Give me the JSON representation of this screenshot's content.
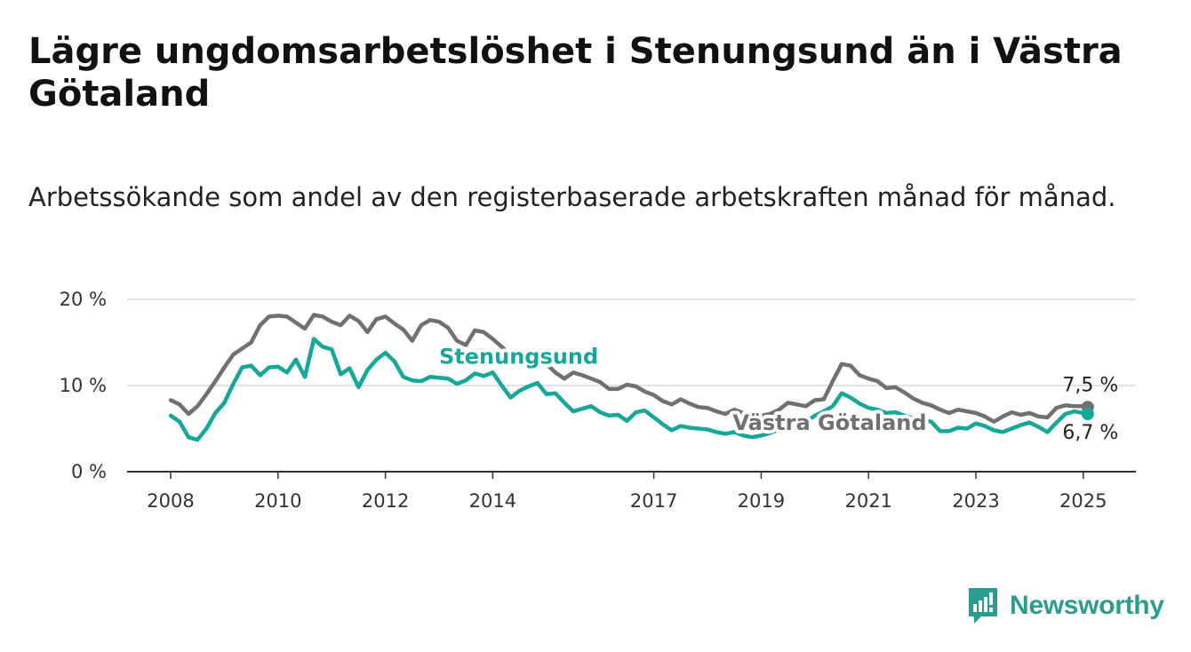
{
  "header": {
    "title": "Lägre ungdomsarbetslöshet i Stenungsund än i Västra Götaland",
    "subtitle": "Arbetssökande som andel av den registerbaserade arbetskraften månad för månad."
  },
  "colors": {
    "stenungsund": "#14a79a",
    "vastra_gotaland": "#707070",
    "grid": "#d9d9d9",
    "axis": "#333333",
    "brand": "#2a9d90"
  },
  "logo": {
    "text": "Newsworthy",
    "icon": "bar-chart-logo-icon"
  },
  "chart_data": {
    "type": "line",
    "title": "Lägre ungdomsarbetslöshet i Stenungsund än i Västra Götaland",
    "subtitle": "Arbetssökande som andel av den registerbaserade arbetskraften månad för månad.",
    "xlabel": "",
    "ylabel": "",
    "xlim": [
      "2008-01",
      "2025-12"
    ],
    "ylim": [
      0,
      20
    ],
    "y_ticks": [
      0,
      10,
      20
    ],
    "y_tick_labels": [
      "0 %",
      "10 %",
      "20 %"
    ],
    "x_ticks": [
      "2008",
      "2010",
      "2012",
      "2014",
      "2017",
      "2019",
      "2021",
      "2023",
      "2025"
    ],
    "grid": true,
    "legend": "inline labels",
    "series": [
      {
        "name": "Västra Götaland",
        "label_position": "2019-01",
        "end_label": "7,5 %",
        "points": [
          [
            "2008-01",
            8.3
          ],
          [
            "2008-03",
            7.8
          ],
          [
            "2008-05",
            6.7
          ],
          [
            "2008-07",
            7.6
          ],
          [
            "2008-09",
            9.0
          ],
          [
            "2008-11",
            10.5
          ],
          [
            "2009-01",
            12.1
          ],
          [
            "2009-03",
            13.6
          ],
          [
            "2009-05",
            14.3
          ],
          [
            "2009-07",
            15.0
          ],
          [
            "2009-09",
            17.0
          ],
          [
            "2009-11",
            18.0
          ],
          [
            "2010-01",
            18.1
          ],
          [
            "2010-03",
            18.0
          ],
          [
            "2010-05",
            17.3
          ],
          [
            "2010-07",
            16.6
          ],
          [
            "2010-09",
            18.2
          ],
          [
            "2010-11",
            18.0
          ],
          [
            "2011-01",
            17.4
          ],
          [
            "2011-03",
            17.0
          ],
          [
            "2011-05",
            18.1
          ],
          [
            "2011-07",
            17.5
          ],
          [
            "2011-09",
            16.2
          ],
          [
            "2011-11",
            17.7
          ],
          [
            "2012-01",
            18.0
          ],
          [
            "2012-03",
            17.2
          ],
          [
            "2012-05",
            16.5
          ],
          [
            "2012-07",
            15.2
          ],
          [
            "2012-09",
            17.0
          ],
          [
            "2012-11",
            17.6
          ],
          [
            "2013-01",
            17.4
          ],
          [
            "2013-03",
            16.7
          ],
          [
            "2013-05",
            15.2
          ],
          [
            "2013-07",
            14.7
          ],
          [
            "2013-09",
            16.4
          ],
          [
            "2013-11",
            16.2
          ],
          [
            "2014-01",
            15.4
          ],
          [
            "2014-03",
            14.5
          ],
          [
            "2014-05",
            13.5
          ],
          [
            "2014-07",
            12.7
          ],
          [
            "2014-09",
            13.8
          ],
          [
            "2014-11",
            13.2
          ],
          [
            "2015-01",
            12.5
          ],
          [
            "2015-03",
            11.5
          ],
          [
            "2015-05",
            10.8
          ],
          [
            "2015-07",
            11.5
          ],
          [
            "2015-09",
            11.2
          ],
          [
            "2015-11",
            10.8
          ],
          [
            "2016-01",
            10.4
          ],
          [
            "2016-03",
            9.6
          ],
          [
            "2016-05",
            9.6
          ],
          [
            "2016-07",
            10.1
          ],
          [
            "2016-09",
            9.9
          ],
          [
            "2016-11",
            9.3
          ],
          [
            "2017-01",
            8.9
          ],
          [
            "2017-03",
            8.2
          ],
          [
            "2017-05",
            7.8
          ],
          [
            "2017-07",
            8.4
          ],
          [
            "2017-09",
            7.9
          ],
          [
            "2017-11",
            7.5
          ],
          [
            "2018-01",
            7.4
          ],
          [
            "2018-03",
            7.0
          ],
          [
            "2018-05",
            6.7
          ],
          [
            "2018-07",
            7.2
          ],
          [
            "2018-09",
            6.8
          ],
          [
            "2018-11",
            6.6
          ],
          [
            "2019-01",
            6.5
          ],
          [
            "2019-03",
            6.7
          ],
          [
            "2019-05",
            7.2
          ],
          [
            "2019-07",
            8.0
          ],
          [
            "2019-09",
            7.8
          ],
          [
            "2019-11",
            7.6
          ],
          [
            "2020-01",
            8.3
          ],
          [
            "2020-03",
            8.4
          ],
          [
            "2020-05",
            10.5
          ],
          [
            "2020-07",
            12.5
          ],
          [
            "2020-09",
            12.3
          ],
          [
            "2020-11",
            11.2
          ],
          [
            "2021-01",
            10.8
          ],
          [
            "2021-03",
            10.5
          ],
          [
            "2021-05",
            9.7
          ],
          [
            "2021-07",
            9.8
          ],
          [
            "2021-09",
            9.2
          ],
          [
            "2021-11",
            8.5
          ],
          [
            "2022-01",
            8.0
          ],
          [
            "2022-03",
            7.7
          ],
          [
            "2022-05",
            7.2
          ],
          [
            "2022-07",
            6.8
          ],
          [
            "2022-09",
            7.2
          ],
          [
            "2022-11",
            7.0
          ],
          [
            "2023-01",
            6.8
          ],
          [
            "2023-03",
            6.4
          ],
          [
            "2023-05",
            5.8
          ],
          [
            "2023-07",
            6.4
          ],
          [
            "2023-09",
            6.9
          ],
          [
            "2023-11",
            6.6
          ],
          [
            "2024-01",
            6.8
          ],
          [
            "2024-03",
            6.4
          ],
          [
            "2024-05",
            6.3
          ],
          [
            "2024-07",
            7.4
          ],
          [
            "2024-09",
            7.7
          ],
          [
            "2024-11",
            7.6
          ],
          [
            "2025-01",
            7.6
          ],
          [
            "2025-02",
            7.5
          ]
        ]
      },
      {
        "name": "Stenungsund",
        "label_position": "2013-01",
        "end_label": "6,7 %",
        "points": [
          [
            "2008-01",
            6.5
          ],
          [
            "2008-03",
            5.8
          ],
          [
            "2008-05",
            4.0
          ],
          [
            "2008-07",
            3.7
          ],
          [
            "2008-09",
            5.0
          ],
          [
            "2008-11",
            6.8
          ],
          [
            "2009-01",
            8.0
          ],
          [
            "2009-03",
            10.2
          ],
          [
            "2009-05",
            12.1
          ],
          [
            "2009-07",
            12.3
          ],
          [
            "2009-09",
            11.2
          ],
          [
            "2009-11",
            12.1
          ],
          [
            "2010-01",
            12.2
          ],
          [
            "2010-03",
            11.5
          ],
          [
            "2010-05",
            13.0
          ],
          [
            "2010-07",
            11.0
          ],
          [
            "2010-09",
            15.4
          ],
          [
            "2010-11",
            14.5
          ],
          [
            "2011-01",
            14.2
          ],
          [
            "2011-03",
            11.3
          ],
          [
            "2011-05",
            12.0
          ],
          [
            "2011-07",
            9.8
          ],
          [
            "2011-09",
            11.8
          ],
          [
            "2011-11",
            13.0
          ],
          [
            "2012-01",
            13.8
          ],
          [
            "2012-03",
            12.8
          ],
          [
            "2012-05",
            11.0
          ],
          [
            "2012-07",
            10.6
          ],
          [
            "2012-09",
            10.5
          ],
          [
            "2012-11",
            11.0
          ],
          [
            "2013-01",
            10.9
          ],
          [
            "2013-03",
            10.8
          ],
          [
            "2013-05",
            10.2
          ],
          [
            "2013-07",
            10.6
          ],
          [
            "2013-09",
            11.4
          ],
          [
            "2013-11",
            11.1
          ],
          [
            "2014-01",
            11.5
          ],
          [
            "2014-03",
            10.0
          ],
          [
            "2014-05",
            8.6
          ],
          [
            "2014-07",
            9.4
          ],
          [
            "2014-09",
            9.9
          ],
          [
            "2014-11",
            10.3
          ],
          [
            "2015-01",
            9.0
          ],
          [
            "2015-03",
            9.1
          ],
          [
            "2015-05",
            8.0
          ],
          [
            "2015-07",
            7.0
          ],
          [
            "2015-09",
            7.3
          ],
          [
            "2015-11",
            7.6
          ],
          [
            "2016-01",
            6.9
          ],
          [
            "2016-03",
            6.5
          ],
          [
            "2016-05",
            6.6
          ],
          [
            "2016-07",
            5.9
          ],
          [
            "2016-09",
            6.9
          ],
          [
            "2016-11",
            7.1
          ],
          [
            "2017-01",
            6.3
          ],
          [
            "2017-03",
            5.5
          ],
          [
            "2017-05",
            4.8
          ],
          [
            "2017-07",
            5.3
          ],
          [
            "2017-09",
            5.1
          ],
          [
            "2017-11",
            5.0
          ],
          [
            "2018-01",
            4.9
          ],
          [
            "2018-03",
            4.6
          ],
          [
            "2018-05",
            4.4
          ],
          [
            "2018-07",
            4.6
          ],
          [
            "2018-09",
            4.2
          ],
          [
            "2018-11",
            4.0
          ],
          [
            "2019-01",
            4.2
          ],
          [
            "2019-03",
            4.5
          ],
          [
            "2019-05",
            4.9
          ],
          [
            "2019-07",
            5.3
          ],
          [
            "2019-09",
            4.8
          ],
          [
            "2019-11",
            5.8
          ],
          [
            "2020-01",
            6.5
          ],
          [
            "2020-03",
            7.0
          ],
          [
            "2020-05",
            7.6
          ],
          [
            "2020-07",
            9.1
          ],
          [
            "2020-09",
            8.6
          ],
          [
            "2020-11",
            7.9
          ],
          [
            "2021-01",
            7.4
          ],
          [
            "2021-03",
            7.2
          ],
          [
            "2021-05",
            6.8
          ],
          [
            "2021-07",
            6.9
          ],
          [
            "2021-09",
            6.5
          ],
          [
            "2021-11",
            6.2
          ],
          [
            "2022-01",
            6.0
          ],
          [
            "2022-03",
            5.8
          ],
          [
            "2022-05",
            4.7
          ],
          [
            "2022-07",
            4.7
          ],
          [
            "2022-09",
            5.1
          ],
          [
            "2022-11",
            5.0
          ],
          [
            "2023-01",
            5.6
          ],
          [
            "2023-03",
            5.3
          ],
          [
            "2023-05",
            4.8
          ],
          [
            "2023-07",
            4.6
          ],
          [
            "2023-09",
            5.0
          ],
          [
            "2023-11",
            5.4
          ],
          [
            "2024-01",
            5.7
          ],
          [
            "2024-03",
            5.2
          ],
          [
            "2024-05",
            4.6
          ],
          [
            "2024-07",
            5.7
          ],
          [
            "2024-09",
            6.7
          ],
          [
            "2024-11",
            7.0
          ],
          [
            "2025-01",
            6.8
          ],
          [
            "2025-02",
            6.7
          ]
        ]
      }
    ]
  }
}
